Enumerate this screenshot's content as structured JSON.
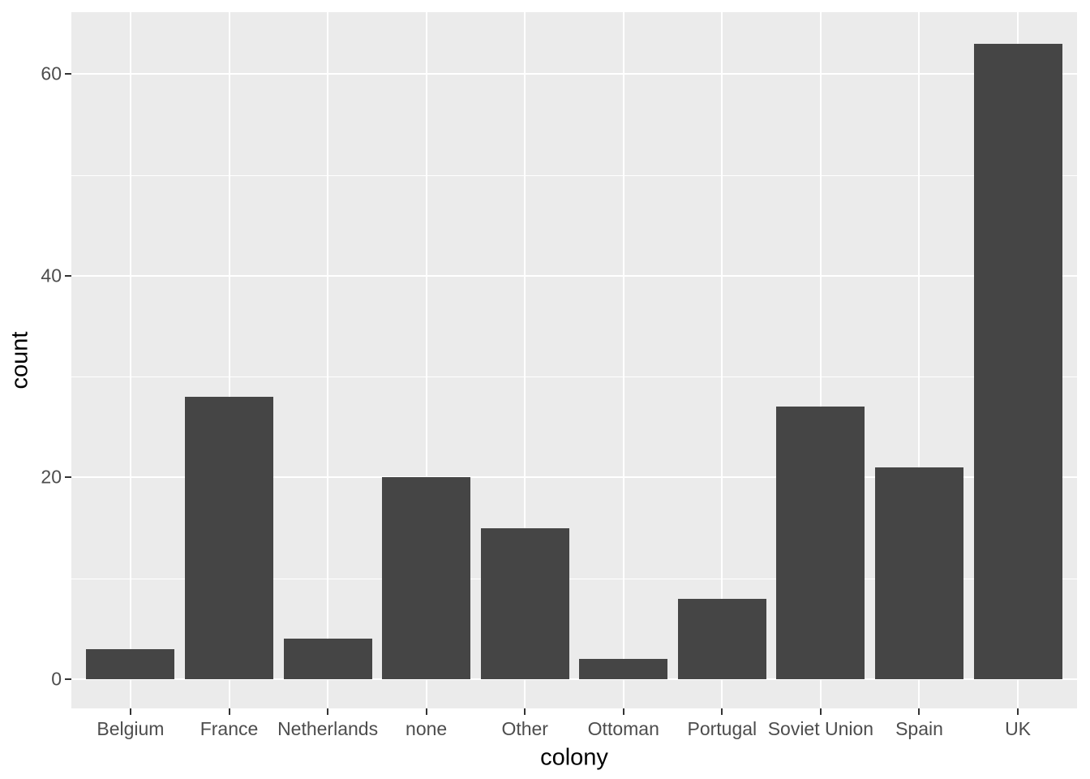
{
  "chart_data": {
    "type": "bar",
    "title": "",
    "xlabel": "colony",
    "ylabel": "count",
    "categories": [
      "Belgium",
      "France",
      "Netherlands",
      "none",
      "Other",
      "Ottoman",
      "Portugal",
      "Soviet Union",
      "Spain",
      "UK"
    ],
    "values": [
      3,
      28,
      4,
      20,
      15,
      2,
      8,
      27,
      21,
      63
    ],
    "ylim": [
      0,
      63
    ],
    "y_major_ticks": [
      0,
      20,
      40,
      60
    ],
    "y_minor_gridlines": [
      10,
      30,
      50
    ],
    "grid": "on",
    "legend": "none",
    "colors": {
      "bar_fill": "#454545",
      "panel_background": "#EBEBEB",
      "gridline": "#FFFFFF",
      "tick_label": "#4D4D4D",
      "axis_title": "#000000",
      "tick_mark": "#333333",
      "figure_background": "#FFFFFF"
    }
  }
}
